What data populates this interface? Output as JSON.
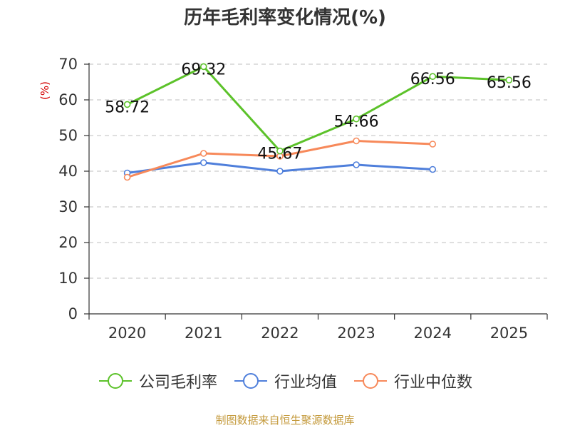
{
  "chart_data": {
    "type": "line",
    "title": "历年毛利率变化情况(%)",
    "ylabel": "(%)",
    "xlabel": "",
    "categories": [
      "2020",
      "2021",
      "2022",
      "2023",
      "2024",
      "2025"
    ],
    "ylim": [
      0,
      70
    ],
    "yticks": [
      0,
      10,
      20,
      30,
      40,
      50,
      60,
      70
    ],
    "grid": true,
    "legend_position": "bottom",
    "series": [
      {
        "name": "公司毛利率",
        "color": "#5cc22a",
        "values": [
          58.72,
          69.32,
          45.67,
          54.66,
          66.56,
          65.56
        ],
        "labels": [
          "58.72",
          "69.32",
          "45.67",
          "54.66",
          "66.56",
          "65.56"
        ]
      },
      {
        "name": "行业均值",
        "color": "#4f7fdb",
        "values": [
          39.5,
          42.4,
          40.0,
          41.8,
          40.5,
          null
        ]
      },
      {
        "name": "行业中位数",
        "color": "#f7895a",
        "values": [
          38.3,
          45.0,
          44.2,
          48.5,
          47.6,
          null
        ]
      }
    ]
  },
  "source_note": "制图数据来自恒生聚源数据库"
}
